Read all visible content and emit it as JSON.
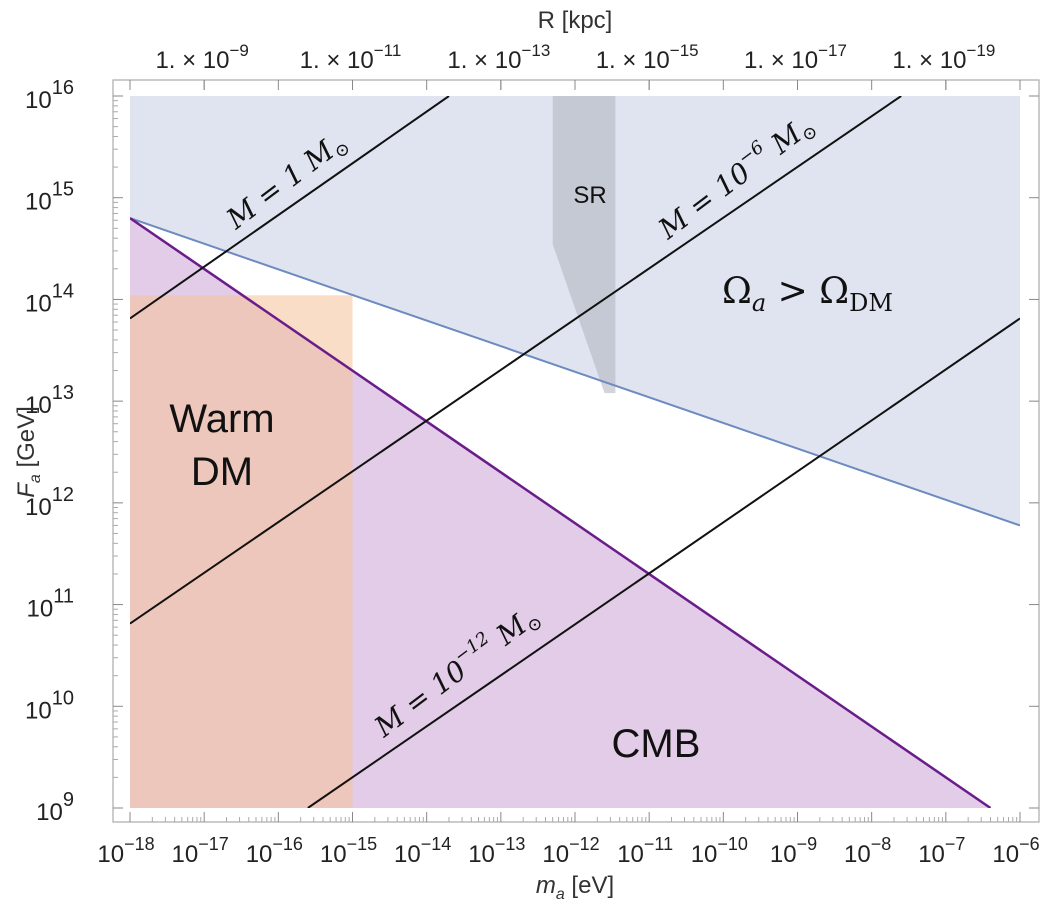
{
  "chart_data": {
    "type": "area",
    "xlabel_base": "m",
    "xlabel_sub": "a",
    "xlabel_unit": " [eV]",
    "ylabel_base": "F",
    "ylabel_sub": "a",
    "ylabel_unit": " [GeV]",
    "top_axis_label": "R [kpc]",
    "x_scale": "log",
    "y_scale": "log",
    "xlim": [
      1e-18,
      1e-06
    ],
    "ylim": [
      1000000000.0,
      1e+16
    ],
    "x_tick_exponents": [
      -18,
      -17,
      -16,
      -15,
      -14,
      -13,
      -12,
      -11,
      -10,
      -9,
      -8,
      -7,
      -6
    ],
    "y_tick_exponents": [
      9,
      10,
      11,
      12,
      13,
      14,
      15,
      16
    ],
    "top_ticks": [
      {
        "m_eV": 1e-17,
        "label": "1. × 10",
        "exp": "-9"
      },
      {
        "m_eV": 1e-15,
        "label": "1. × 10",
        "exp": "-11"
      },
      {
        "m_eV": 1e-13,
        "label": "1. × 10",
        "exp": "-13"
      },
      {
        "m_eV": 1e-11,
        "label": "1. × 10",
        "exp": "-15"
      },
      {
        "m_eV": 1e-09,
        "label": "1. × 10",
        "exp": "-17"
      },
      {
        "m_eV": 1e-07,
        "label": "1. × 10",
        "exp": "-19"
      }
    ],
    "regions": [
      {
        "name": "Ω_a > Ω_DM",
        "color": "#c4cde3",
        "opacity": 0.55,
        "polygon": [
          [
            1e-18,
            1e+16
          ],
          [
            1e-06,
            1e+16
          ],
          [
            1e-06,
            600000000000.0
          ],
          [
            1e-18,
            630000000000000.0
          ]
        ],
        "boundary_color": "#6d8bc0"
      },
      {
        "name": "CMB",
        "color": "#caa3d4",
        "opacity": 0.55,
        "polygon": [
          [
            1e-18,
            1000000000.0
          ],
          [
            4e-07,
            1000000000.0
          ],
          [
            1e-18,
            630000000000000.0
          ]
        ],
        "boundary_color": "#6a1d8a"
      },
      {
        "name": "Warm DM",
        "color": "#f5c199",
        "opacity": 0.55,
        "polygon": [
          [
            1e-18,
            1000000000.0
          ],
          [
            1e-15,
            1000000000.0
          ],
          [
            1e-15,
            110000000000000.0
          ],
          [
            1e-18,
            110000000000000.0
          ]
        ]
      },
      {
        "name": "SR",
        "color": "#aeb3bd",
        "opacity": 0.55,
        "polygon": [
          [
            5e-13,
            1e+16
          ],
          [
            3.5e-12,
            1e+16
          ],
          [
            3.5e-12,
            12000000000000.0
          ],
          [
            2.5e-12,
            12000000000000.0
          ],
          [
            5e-13,
            350000000000000.0
          ]
        ]
      }
    ],
    "mass_lines": [
      {
        "label_coef": "M = 1 M",
        "label_exp": "",
        "endpoints": [
          [
            1e-18,
            65000000000000.0
          ],
          [
            2e-14,
            1e+16
          ]
        ]
      },
      {
        "label_coef": "M = 10",
        "label_exp": "−6",
        "endpoints": [
          [
            1e-18,
            65000000000.0
          ],
          [
            2.5e-08,
            1e+16
          ]
        ]
      },
      {
        "label_coef": "M = 10",
        "label_exp": "−12",
        "endpoints": [
          [
            2.5e-16,
            1000000000.0
          ],
          [
            1e-06,
            65000000000000.0
          ]
        ]
      }
    ],
    "annotations": {
      "warm_line1": "Warm",
      "warm_line2": "DM",
      "cmb": "CMB",
      "sr": "SR",
      "omega_a": "Ω",
      "omega_sub_a": "a",
      "omega_gt": " > Ω",
      "omega_sub_dm": "DM",
      "msun_sub": "⊙"
    }
  }
}
